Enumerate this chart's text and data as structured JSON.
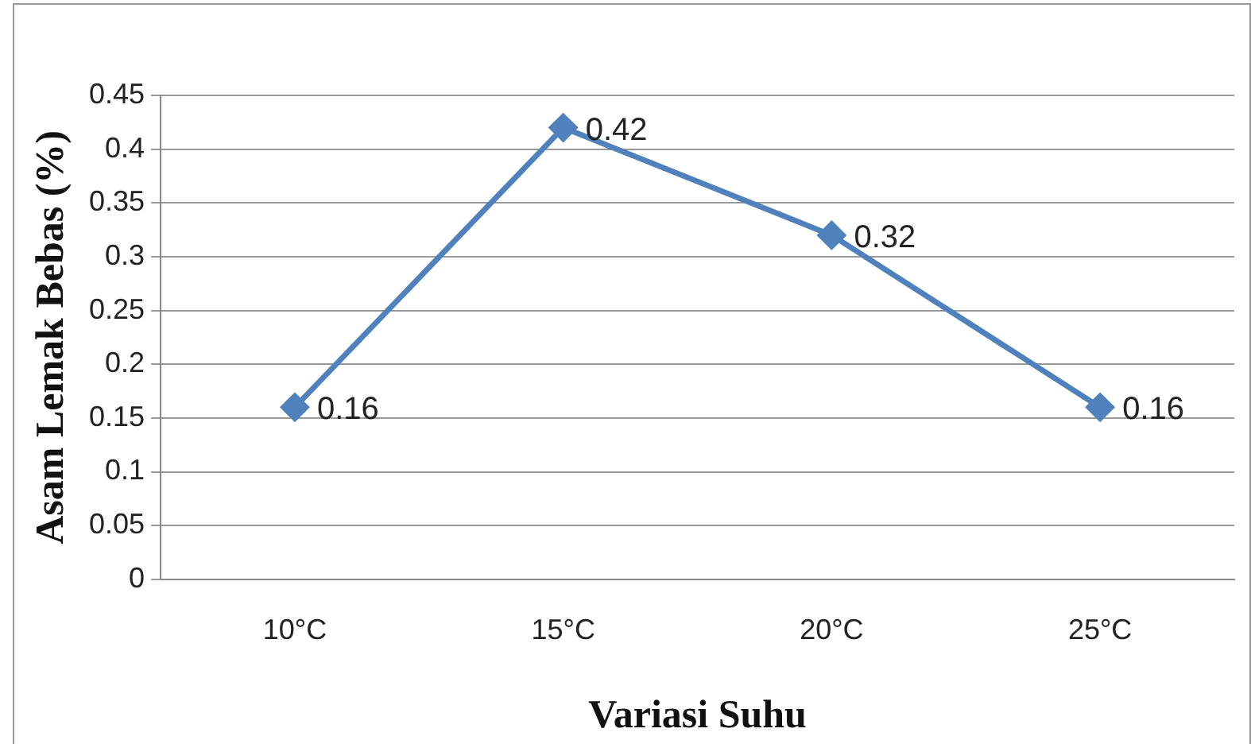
{
  "chart_data": {
    "type": "line",
    "xlabel": "Variasi Suhu",
    "ylabel": "Asam Lemak Bebas (%)",
    "categories": [
      "10°C",
      "15°C",
      "20°C",
      "25°C"
    ],
    "series": [
      {
        "color": "#4f81bd",
        "values": [
          0.16,
          0.42,
          0.32,
          0.16
        ]
      }
    ],
    "ylim": [
      0,
      0.45
    ],
    "yticks": [
      0,
      0.05,
      0.1,
      0.15,
      0.2,
      0.25,
      0.3,
      0.35,
      0.4,
      0.45
    ],
    "grid": "y",
    "marker": "diamond",
    "line_style": "solid",
    "data_labels": true,
    "legend": false
  }
}
